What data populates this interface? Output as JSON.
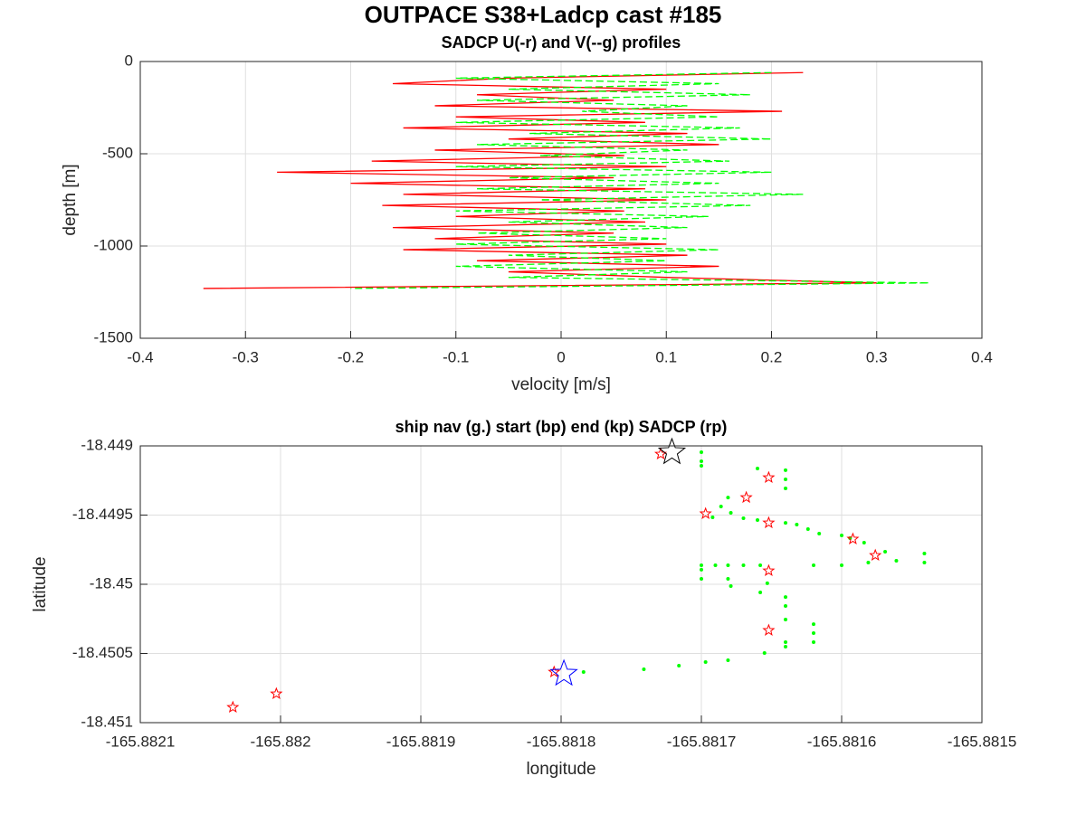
{
  "figure_title": "OUTPACE S38+Ladcp cast #185",
  "chart_data": [
    {
      "type": "line",
      "title": "SADCP U(-r) and V(--g) profiles",
      "x_label": "velocity [m/s]",
      "y_label": "depth [m]",
      "xlim": [
        -0.4,
        0.4
      ],
      "xticks": [
        -0.4,
        -0.3,
        -0.2,
        -0.1,
        0,
        0.1,
        0.2,
        0.3,
        0.4
      ],
      "ylim": [
        -1500,
        0
      ],
      "yticks": [
        -1500,
        -1000,
        -500,
        0
      ],
      "grid": true,
      "y": [
        -60,
        -90,
        -120,
        -150,
        -180,
        -210,
        -240,
        -270,
        -300,
        -330,
        -360,
        -390,
        -420,
        -450,
        -480,
        -510,
        -540,
        -570,
        -600,
        -630,
        -660,
        -690,
        -720,
        -750,
        -780,
        -810,
        -840,
        -870,
        -900,
        -930,
        -960,
        -990,
        -1020,
        -1050,
        -1080,
        -1110,
        -1140,
        -1170,
        -1200,
        -1230
      ],
      "series": [
        {
          "name": "U",
          "color": "#ff0000",
          "dash": false,
          "values": [
            0.23,
            -0.05,
            -0.16,
            0.1,
            -0.08,
            0.05,
            -0.12,
            0.21,
            -0.1,
            0.08,
            -0.15,
            0.12,
            -0.05,
            0.15,
            -0.12,
            0.06,
            -0.18,
            0.1,
            -0.27,
            0.05,
            -0.2,
            0.08,
            -0.15,
            0.1,
            -0.17,
            0.06,
            -0.1,
            0.08,
            -0.16,
            0.05,
            -0.12,
            0.1,
            -0.15,
            0.12,
            -0.08,
            0.15,
            -0.05,
            0.1,
            0.3,
            -0.34
          ]
        },
        {
          "name": "V",
          "color": "#00ff00",
          "dash": true,
          "values": [
            0.2,
            -0.1,
            0.15,
            -0.05,
            0.18,
            -0.08,
            0.12,
            0.02,
            0.15,
            -0.1,
            0.17,
            -0.03,
            0.2,
            -0.08,
            0.12,
            -0.02,
            0.16,
            -0.1,
            0.2,
            -0.05,
            0.15,
            -0.08,
            0.23,
            -0.02,
            0.18,
            -0.1,
            0.14,
            -0.05,
            0.12,
            -0.08,
            0.1,
            -0.1,
            0.15,
            -0.05,
            0.1,
            -0.1,
            0.12,
            -0.05,
            0.35,
            -0.2
          ]
        }
      ]
    },
    {
      "type": "scatter",
      "title": "ship nav (g.) start (bp) end (kp) SADCP (rp)",
      "x_label": "longitude",
      "y_label": "latitude",
      "xlim": [
        -165.8821,
        -165.8815
      ],
      "xticks": [
        -165.8821,
        -165.882,
        -165.8819,
        -165.8818,
        -165.8817,
        -165.8816,
        -165.8815
      ],
      "ylim": [
        -18.451,
        -18.449
      ],
      "yticks": [
        -18.451,
        -18.4505,
        -18.45,
        -18.4495,
        -18.449
      ],
      "grid": true,
      "series": [
        {
          "name": "ship nav",
          "color": "#00ff00",
          "marker": "dot",
          "x": [
            -165.8817,
            -165.8817,
            -165.8817,
            -165.8817,
            -165.8817,
            -165.8817,
            -165.88164,
            -165.88164,
            -165.88164,
            -165.88164,
            -165.88164,
            -165.88164,
            -165.88164,
            -165.88164,
            -165.88162,
            -165.88162,
            -165.88162,
            -165.88166,
            -165.881681,
            -165.881686,
            -165.881679,
            -165.881692,
            -165.88167,
            -165.88166,
            -165.88164,
            -165.881632,
            -165.881624,
            -165.881616,
            -165.8816,
            -165.881594,
            -165.881584,
            -165.881569,
            -165.881561,
            -165.881541,
            -165.881541,
            -165.88169,
            -165.881681,
            -165.88167,
            -165.881658,
            -165.88162,
            -165.8816,
            -165.881581,
            -165.881681,
            -165.881679,
            -165.881658,
            -165.881653,
            -165.881655,
            -165.881681,
            -165.881697,
            -165.881716,
            -165.881741,
            -165.881784
          ],
          "y": [
            -18.449046,
            -18.449111,
            -18.449144,
            -18.449895,
            -18.449961,
            -18.449863,
            -18.449176,
            -18.449242,
            -18.449307,
            -18.450092,
            -18.450157,
            -18.450255,
            -18.450418,
            -18.450451,
            -18.450288,
            -18.450353,
            -18.450418,
            -18.449163,
            -18.449373,
            -18.449438,
            -18.449484,
            -18.449516,
            -18.449523,
            -18.449536,
            -18.449556,
            -18.449569,
            -18.449601,
            -18.449634,
            -18.449647,
            -18.449667,
            -18.449699,
            -18.449765,
            -18.44983,
            -18.449778,
            -18.449843,
            -18.449863,
            -18.449863,
            -18.449863,
            -18.449863,
            -18.449863,
            -18.449863,
            -18.449843,
            -18.449961,
            -18.450013,
            -18.450059,
            -18.449993,
            -18.450497,
            -18.450549,
            -18.450562,
            -18.450588,
            -18.450614,
            -18.450634
          ]
        },
        {
          "name": "SADCP",
          "color": "#ff0000",
          "marker": "star",
          "size": 6,
          "x": [
            -165.881729,
            -165.881652,
            -165.881668,
            -165.881697,
            -165.881652,
            -165.881592,
            -165.881576,
            -165.881652,
            -165.881652,
            -165.881805,
            -165.882003,
            -165.882034
          ],
          "y": [
            -18.449059,
            -18.449229,
            -18.449373,
            -18.44949,
            -18.449556,
            -18.449673,
            -18.449791,
            -18.449902,
            -18.450333,
            -18.450634,
            -18.450791,
            -18.450889
          ]
        },
        {
          "name": "start",
          "color": "#0000ff",
          "marker": "star",
          "size": 15,
          "x": [
            -165.881798
          ],
          "y": [
            -18.450647
          ]
        },
        {
          "name": "end",
          "color": "#000000",
          "marker": "star",
          "size": 15,
          "x": [
            -165.881721
          ],
          "y": [
            -18.449046
          ]
        }
      ]
    }
  ]
}
